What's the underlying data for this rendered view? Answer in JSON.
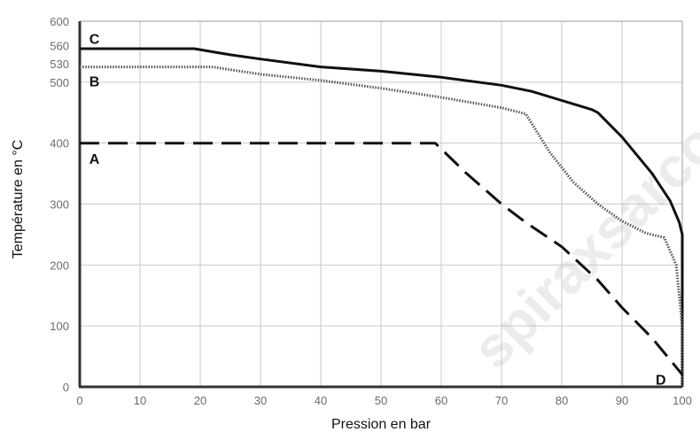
{
  "chart_data": {
    "type": "line",
    "xlabel": "Pression en bar",
    "ylabel": "Température en °C",
    "xlim": [
      0,
      100
    ],
    "ylim": [
      0,
      600
    ],
    "x_ticks": [
      0,
      10,
      20,
      30,
      40,
      50,
      60,
      70,
      80,
      90,
      100
    ],
    "y_ticks": [
      0,
      100,
      200,
      300,
      400,
      500,
      600
    ],
    "y_extra_ticks": [
      530,
      560
    ],
    "grid": true,
    "curve_labels": [
      {
        "text": "C",
        "x": 1,
        "y": 572
      },
      {
        "text": "B",
        "x": 1,
        "y": 502
      },
      {
        "text": "A",
        "x": 1,
        "y": 375
      },
      {
        "text": "D",
        "x": 95,
        "y": 12
      }
    ],
    "series": [
      {
        "label": "C",
        "style": "solid",
        "x": [
          0,
          19,
          25,
          30,
          40,
          50,
          60,
          70,
          75,
          80,
          85,
          86,
          90,
          95,
          98,
          99.5,
          100,
          100
        ],
        "y": [
          555,
          555,
          545,
          538,
          525,
          518,
          508,
          495,
          485,
          470,
          455,
          450,
          410,
          350,
          305,
          270,
          250,
          0
        ]
      },
      {
        "label": "B",
        "style": "dotted",
        "x": [
          0,
          22,
          30,
          40,
          50,
          60,
          70,
          74,
          78,
          82,
          86,
          90,
          94,
          97,
          99,
          100,
          100
        ],
        "y": [
          525,
          525,
          513,
          503,
          490,
          475,
          458,
          448,
          385,
          335,
          300,
          272,
          252,
          245,
          200,
          100,
          0
        ]
      },
      {
        "label": "A",
        "style": "dashed",
        "x": [
          0,
          59,
          64,
          70,
          74,
          80,
          86,
          90,
          95,
          100
        ],
        "y": [
          400,
          400,
          352,
          300,
          270,
          230,
          175,
          130,
          80,
          20
        ]
      }
    ]
  },
  "watermark": "spiraxsarco"
}
